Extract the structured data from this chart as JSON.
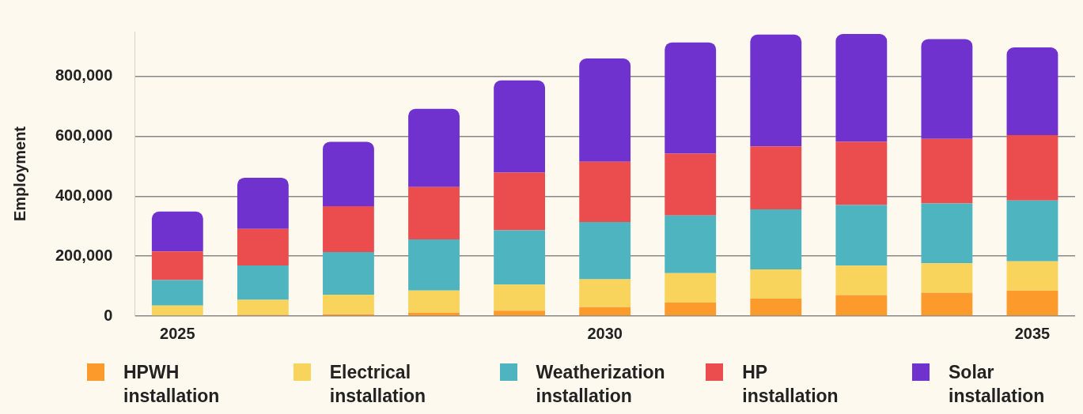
{
  "chart_data": {
    "type": "bar",
    "stacked": true,
    "ylabel": "Employment",
    "categories": [
      "2025",
      null,
      null,
      null,
      null,
      "2030",
      null,
      null,
      null,
      null,
      "2035"
    ],
    "ylim": [
      0,
      950000
    ],
    "yticks": [
      0,
      {
        "value": 200000,
        "label": "200,000"
      },
      {
        "value": 400000,
        "label": "400,000"
      },
      {
        "value": 600000,
        "label": "600,000"
      },
      {
        "value": 800000,
        "label": "800,000"
      }
    ],
    "grid": "y",
    "legend": "bottom",
    "series": [
      {
        "name": "HPWH installation",
        "color": "#fd9a2c",
        "values": [
          2000,
          4000,
          6000,
          11000,
          18000,
          30000,
          45000,
          58000,
          70000,
          78000,
          85000
        ]
      },
      {
        "name": "Electrical installation",
        "color": "#f8d45c",
        "values": [
          33000,
          50000,
          65000,
          74000,
          87000,
          93000,
          98000,
          98000,
          98000,
          98000,
          98000
        ]
      },
      {
        "name": "Weatherization installation",
        "color": "#4eb4c0",
        "values": [
          85000,
          115000,
          143000,
          171000,
          181000,
          191000,
          193000,
          200000,
          203000,
          200000,
          203000
        ]
      },
      {
        "name": "HP installation",
        "color": "#eb4d4f",
        "values": [
          96000,
          122000,
          153000,
          175000,
          193000,
          201000,
          206000,
          211000,
          211000,
          216000,
          218000
        ]
      },
      {
        "name": "Solar installation",
        "color": "#6f32ce",
        "values": [
          133000,
          171000,
          215000,
          261000,
          308000,
          345000,
          372000,
          373000,
          360000,
          333000,
          293000
        ]
      }
    ]
  }
}
